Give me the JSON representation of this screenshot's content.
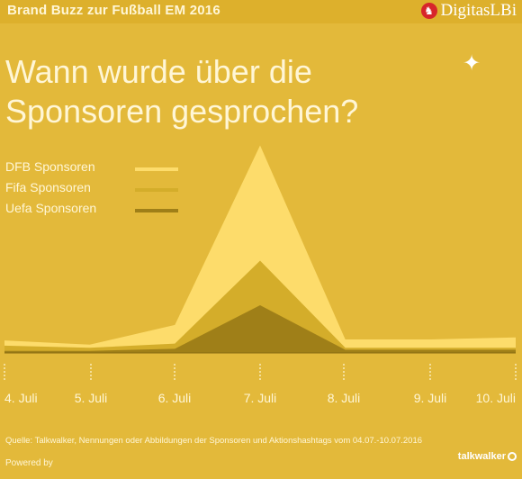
{
  "header": {
    "title": "Brand Buzz zur Fußball EM 2016",
    "logo_text": "DigitasLBi",
    "logo_icon": "horse-icon"
  },
  "headline": {
    "line1": "Wann wurde über die",
    "line2": "Sponsoren gesprochen?"
  },
  "decor_icon": "sparkle-icon",
  "chart_data": {
    "type": "area",
    "title": "Wann wurde über die Sponsoren gesprochen?",
    "categories": [
      "4. Juli",
      "5. Juli",
      "6. Juli",
      "7. Juli",
      "8. Juli",
      "9. Juli",
      "10. Juli"
    ],
    "x_points": [
      0,
      1,
      2,
      3,
      4,
      5,
      6
    ],
    "series": [
      {
        "name": "DFB Sponsoren",
        "color": "#fddc6b",
        "values": [
          1.2,
          0.8,
          2.7,
          20.0,
          1.3,
          1.3,
          1.5
        ]
      },
      {
        "name": "Fifa Sponsoren",
        "color": "#d4ad2a",
        "values": [
          0.7,
          0.5,
          0.9,
          8.9,
          0.5,
          0.5,
          0.5
        ]
      },
      {
        "name": "Uefa Sponsoren",
        "color": "#9f7f18",
        "values": [
          0.2,
          0.2,
          0.4,
          4.6,
          0.3,
          0.3,
          0.3
        ]
      }
    ],
    "ylim": [
      0,
      21
    ],
    "y_axis_visible": false,
    "grid": false,
    "legend_position": "top-left"
  },
  "footer": {
    "source": "Quelle: Talkwalker, Nennungen oder Abbildungen der Sponsoren und Aktionshashtags vom 04.07.-10.07.2016",
    "powered_by": "Powered by",
    "partner_logo_text": "talkwalker"
  }
}
